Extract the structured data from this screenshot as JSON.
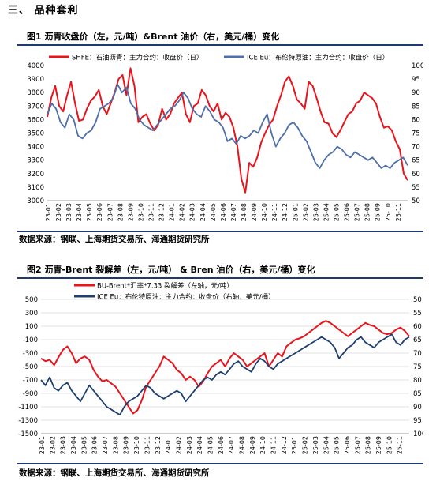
{
  "section": {
    "title": "三、 品种套利"
  },
  "figures": [
    {
      "title": "图1 沥青收盘价（左，元/吨）&Brent 油价（右，美元/桶）变化",
      "source": "数据来源：钢联、上海期货交易所、海通期货研究所"
    },
    {
      "title": "图2 沥青-Brent 裂解差（左，元/吨） & Bren 油价（右，美元/桶）变化",
      "source": "数据来源：钢联、上海期货交易所、海通期货研究所"
    }
  ],
  "chart_data": [
    {
      "type": "line",
      "x_ticks": [
        "23-01",
        "23-02",
        "23-03",
        "23-04",
        "23-05",
        "23-06",
        "23-07",
        "23-08",
        "23-09",
        "23-10",
        "23-11",
        "23-12",
        "24-01",
        "24-02",
        "24-03",
        "24-04",
        "24-05",
        "24-06",
        "24-07",
        "24-08",
        "24-09",
        "24-10",
        "24-11",
        "24-12",
        "25-01",
        "25-02",
        "25-03",
        "25-04",
        "25-05",
        "25-06",
        "25-07",
        "25-08",
        "25-09",
        "25-10",
        "25-11"
      ],
      "left_axis": {
        "min": 3000,
        "max": 4000,
        "step": 100
      },
      "right_axis": {
        "min": 50,
        "max": 100,
        "step": 5
      },
      "legend_position": "top",
      "grid": false,
      "series": [
        {
          "name": "SHFE：石油沥青：主力合约：收盘价（日）",
          "axis": "left",
          "color": "#e8141c",
          "values": [
            3620,
            3760,
            3850,
            3700,
            3660,
            3780,
            3880,
            3720,
            3590,
            3600,
            3680,
            3740,
            3770,
            3820,
            3700,
            3640,
            3720,
            3800,
            3900,
            3930,
            3780,
            3980,
            3850,
            3580,
            3620,
            3640,
            3570,
            3520,
            3560,
            3680,
            3600,
            3640,
            3720,
            3760,
            3800,
            3640,
            3580,
            3700,
            3720,
            3820,
            3780,
            3700,
            3660,
            3720,
            3600,
            3650,
            3620,
            3540,
            3400,
            3160,
            3060,
            3280,
            3250,
            3320,
            3430,
            3500,
            3560,
            3600,
            3700,
            3780,
            3880,
            3920,
            3850,
            3750,
            3720,
            3680,
            3880,
            3850,
            3760,
            3660,
            3580,
            3570,
            3500,
            3470,
            3520,
            3580,
            3640,
            3660,
            3720,
            3740,
            3800,
            3780,
            3760,
            3720,
            3620,
            3540,
            3550,
            3520,
            3440,
            3380,
            3200,
            3150
          ]
        },
        {
          "name": "ICE Eu：布伦特原油：主力合约：收盘价（日）",
          "axis": "right",
          "color": "#4f6fa8",
          "values": [
            82,
            86,
            84,
            79,
            77,
            82,
            80,
            74,
            73,
            75,
            76,
            79,
            84,
            85,
            86,
            88,
            93,
            90,
            92,
            86,
            84,
            80,
            78,
            77,
            76,
            78,
            80,
            82,
            84,
            85,
            87,
            90,
            88,
            84,
            82,
            81,
            85,
            83,
            80,
            79,
            77,
            72,
            73,
            71,
            74,
            73,
            74,
            76,
            75,
            79,
            82,
            75,
            70,
            73,
            75,
            78,
            79,
            77,
            74,
            72,
            68,
            64,
            62,
            65,
            67,
            68,
            70,
            69,
            67,
            66,
            68,
            67,
            66,
            65,
            66,
            64,
            62,
            63,
            62,
            64,
            65,
            66,
            63
          ]
        }
      ]
    },
    {
      "type": "line",
      "x_ticks": [
        "23-01",
        "23-02",
        "23-03",
        "23-04",
        "23-05",
        "23-06",
        "23-07",
        "23-08",
        "23-09",
        "23-10",
        "23-11",
        "23-12",
        "24-01",
        "24-02",
        "24-03",
        "24-04",
        "24-05",
        "24-06",
        "24-07",
        "24-08",
        "24-09",
        "24-10",
        "24-11",
        "24-12",
        "25-01",
        "25-02",
        "25-03",
        "25-04",
        "25-05",
        "25-06",
        "25-07",
        "25-08",
        "25-09",
        "25-10",
        "25-11"
      ],
      "left_axis": {
        "min": -1500,
        "max": 500,
        "step": 200
      },
      "right_axis": {
        "min": 50,
        "max": 100,
        "step": 5,
        "reversed": true
      },
      "legend_position": "top",
      "grid": true,
      "series": [
        {
          "name": "BU-Brent*汇率*7.33 裂解差（左轴，元/吨）",
          "axis": "left",
          "color": "#e8141c",
          "values": [
            -380,
            -420,
            -400,
            -480,
            -360,
            -250,
            -200,
            -300,
            -450,
            -380,
            -350,
            -400,
            -550,
            -650,
            -720,
            -700,
            -750,
            -800,
            -900,
            -1000,
            -1100,
            -1200,
            -1150,
            -1000,
            -800,
            -700,
            -600,
            -500,
            -350,
            -400,
            -450,
            -550,
            -600,
            -700,
            -650,
            -700,
            -800,
            -720,
            -600,
            -500,
            -450,
            -400,
            -500,
            -380,
            -300,
            -350,
            -400,
            -500,
            -450,
            -400,
            -350,
            -300,
            -500,
            -400,
            -300,
            -350,
            -200,
            -150,
            -100,
            -80,
            -50,
            0,
            50,
            100,
            150,
            180,
            150,
            100,
            50,
            0,
            -50,
            0,
            50,
            100,
            150,
            120,
            100,
            50,
            0,
            -20,
            0,
            50,
            80,
            30,
            -50
          ]
        },
        {
          "name": "ICE Eu：布伦特原油：主力合约：收盘价（右轴，美元/桶）",
          "axis": "right",
          "color": "#1f3f6f",
          "values": [
            80,
            82,
            79,
            83,
            84,
            82,
            81,
            84,
            86,
            88,
            85,
            82,
            84,
            86,
            88,
            90,
            91,
            92,
            93,
            90,
            88,
            87,
            86,
            84,
            82,
            83,
            85,
            86,
            87,
            86,
            85,
            84,
            85,
            88,
            86,
            84,
            82,
            80,
            79,
            80,
            78,
            77,
            78,
            76,
            74,
            73,
            75,
            76,
            77,
            74,
            72,
            73,
            75,
            76,
            74,
            73,
            72,
            71,
            70,
            69,
            68,
            67,
            66,
            65,
            64,
            65,
            66,
            68,
            72,
            70,
            68,
            67,
            65,
            64,
            66,
            67,
            68,
            66,
            65,
            64,
            63,
            66,
            67,
            65,
            64
          ]
        }
      ]
    }
  ]
}
